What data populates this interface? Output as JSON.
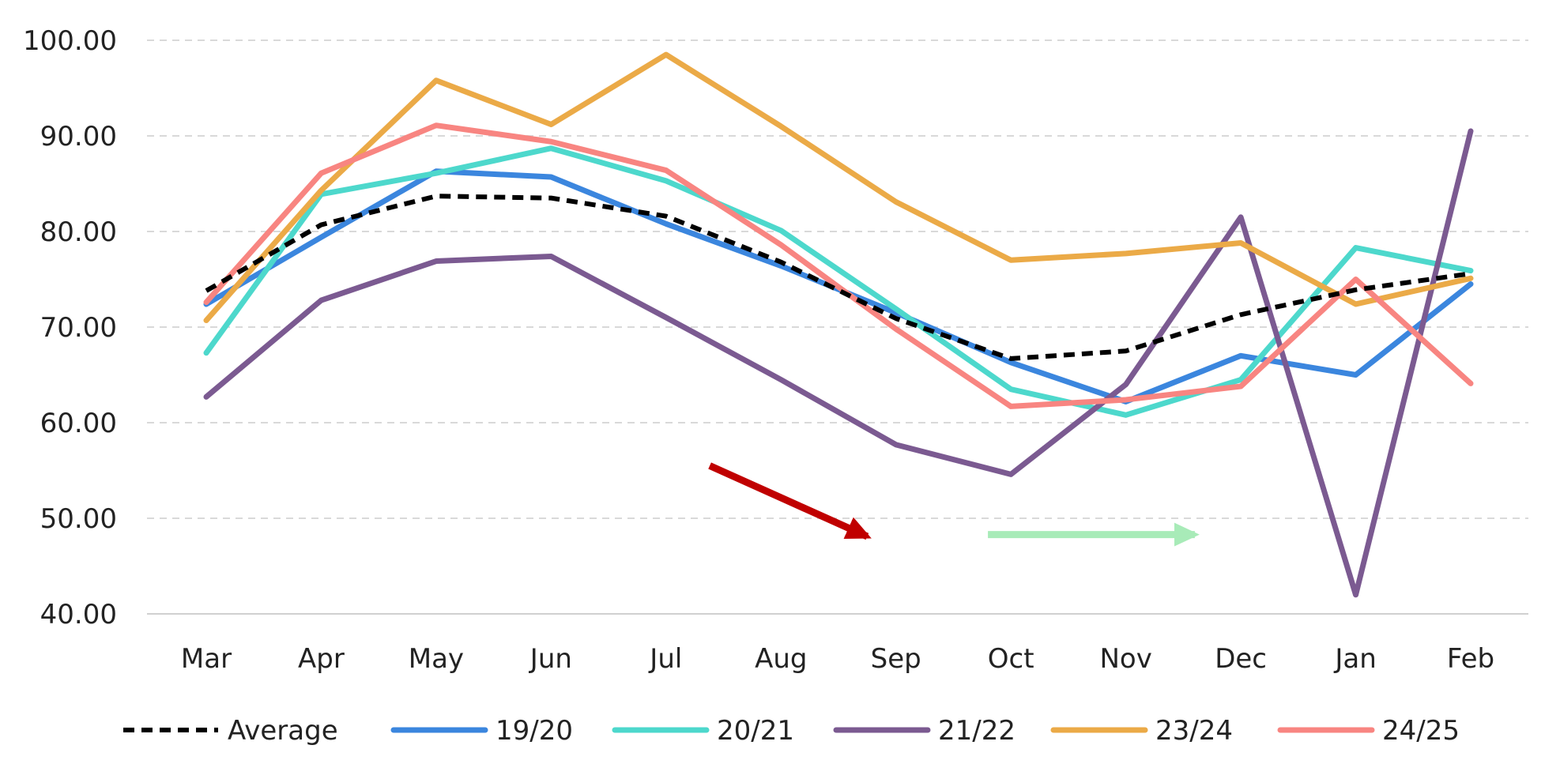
{
  "chart_data": {
    "type": "line",
    "categories": [
      "Mar",
      "Apr",
      "May",
      "Jun",
      "Jul",
      "Aug",
      "Sep",
      "Oct",
      "Nov",
      "Dec",
      "Jan",
      "Feb"
    ],
    "ylim": [
      40,
      100
    ],
    "yticks": [
      "40.00",
      "50.00",
      "60.00",
      "70.00",
      "80.00",
      "90.00",
      "100.00"
    ],
    "grid": "horizontal-dashed",
    "legend": "bottom",
    "series": [
      {
        "name": "Average",
        "color": "#000000",
        "dash": "dashed",
        "values": [
          73.8,
          80.7,
          83.7,
          83.5,
          81.6,
          76.8,
          70.9,
          66.7,
          67.5,
          71.3,
          73.9,
          75.6
        ]
      },
      {
        "name": "19/20",
        "color": "#3B86DE",
        "dash": "solid",
        "values": [
          72.4,
          79.4,
          86.3,
          85.7,
          80.8,
          76.4,
          71.5,
          66.3,
          62.2,
          67.0,
          65.0,
          74.5
        ]
      },
      {
        "name": "20/21",
        "color": "#4DD8CC",
        "dash": "solid",
        "values": [
          67.3,
          83.9,
          86.1,
          88.7,
          85.3,
          80.1,
          71.9,
          63.5,
          60.8,
          64.5,
          78.3,
          75.9
        ]
      },
      {
        "name": "21/22",
        "color": "#7B5A91",
        "dash": "solid",
        "values": [
          62.7,
          72.8,
          76.9,
          77.4,
          71.0,
          64.5,
          57.7,
          54.6,
          64.0,
          81.5,
          42.0,
          90.5
        ]
      },
      {
        "name": "23/24",
        "color": "#EBAA47",
        "dash": "solid",
        "values": [
          70.7,
          84.3,
          95.8,
          91.2,
          98.5,
          91.0,
          83.1,
          77.0,
          77.7,
          78.8,
          72.4,
          75.1
        ]
      },
      {
        "name": "24/25",
        "color": "#F88581",
        "dash": "solid",
        "values": [
          72.6,
          86.1,
          91.1,
          89.4,
          86.4,
          78.6,
          69.8,
          61.7,
          62.4,
          63.8,
          75.0,
          64.1
        ]
      }
    ],
    "annotations": [
      {
        "type": "arrow",
        "color": "#C00000",
        "x_from": 4.38,
        "y_from": 55.5,
        "x_to": 5.75,
        "y_to": 48.1
      },
      {
        "type": "arrow",
        "color": "#A8EBB8",
        "x_from": 6.8,
        "y_from": 48.3,
        "x_to": 8.6,
        "y_to": 48.3
      }
    ]
  }
}
